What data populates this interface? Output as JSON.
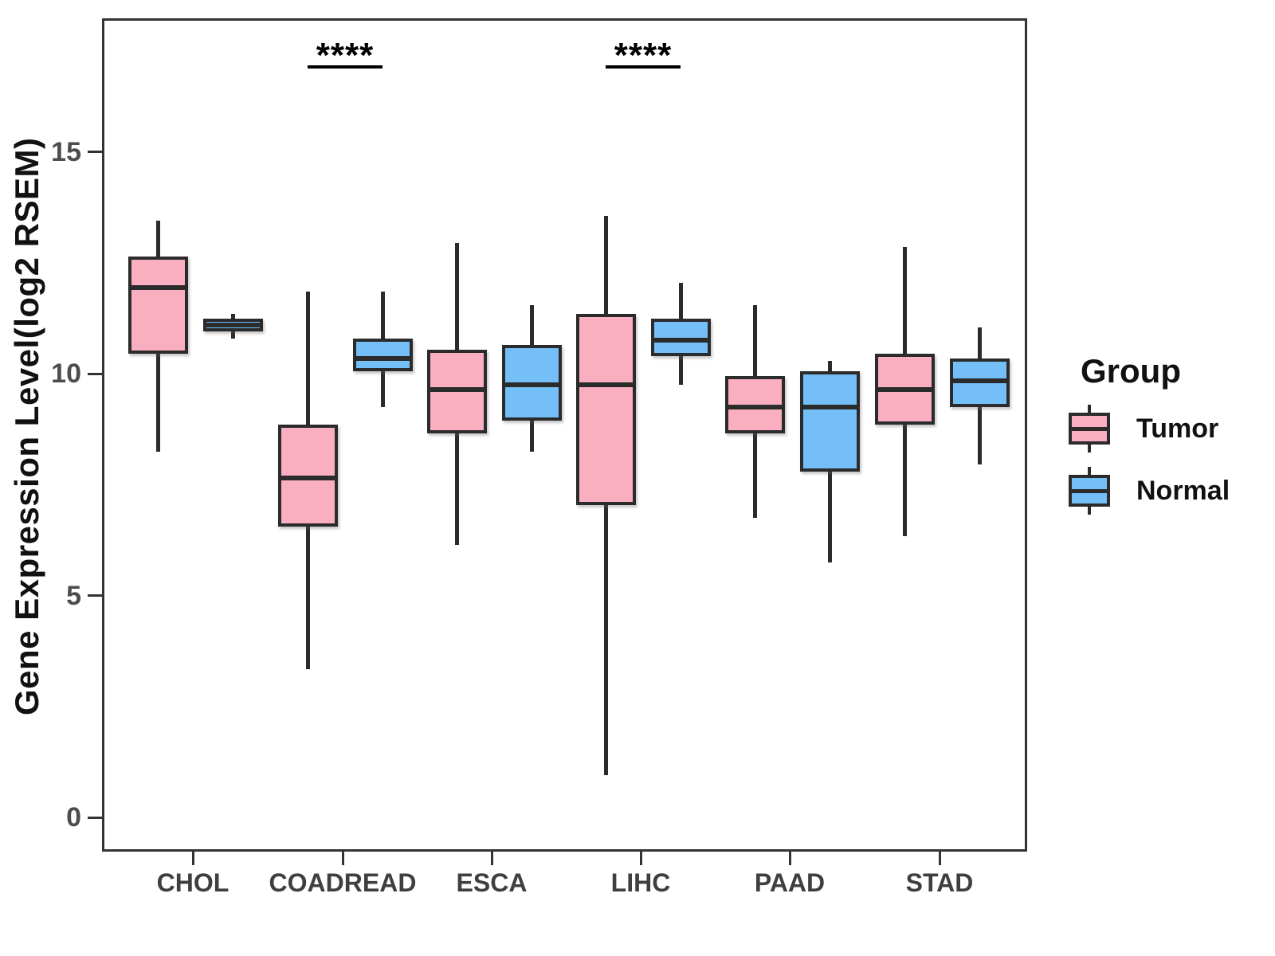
{
  "chart_data": {
    "type": "boxplot",
    "title": "",
    "xlabel": "",
    "ylabel": "Gene Expression Level(log2 RSEM)",
    "y_ticks": [
      0,
      5,
      10,
      15
    ],
    "ylim": [
      -0.75,
      18.05
    ],
    "grid": false,
    "categories": [
      "CHOL",
      "COADREAD",
      "ESCA",
      "LIHC",
      "PAAD",
      "STAD"
    ],
    "series": [
      {
        "name": "Tumor",
        "fill_color": "#FAAFC1",
        "line_color": "#2b2b2b",
        "boxes": [
          {
            "category": "CHOL",
            "min": 8.3,
            "q1": 10.5,
            "median": 12.0,
            "q3": 12.7,
            "max": 13.5
          },
          {
            "category": "COADREAD",
            "min": 3.4,
            "q1": 6.6,
            "median": 7.7,
            "q3": 8.9,
            "max": 11.9
          },
          {
            "category": "ESCA",
            "min": 6.2,
            "q1": 8.7,
            "median": 9.7,
            "q3": 10.6,
            "max": 13.0
          },
          {
            "category": "LIHC",
            "min": 1.0,
            "q1": 7.1,
            "median": 9.8,
            "q3": 11.4,
            "max": 13.6
          },
          {
            "category": "PAAD",
            "min": 6.8,
            "q1": 8.7,
            "median": 9.3,
            "q3": 10.0,
            "max": 11.6
          },
          {
            "category": "STAD",
            "min": 6.4,
            "q1": 8.9,
            "median": 9.7,
            "q3": 10.5,
            "max": 12.9
          }
        ]
      },
      {
        "name": "Normal",
        "fill_color": "#74BFF7",
        "line_color": "#2b2b2b",
        "boxes": [
          {
            "category": "CHOL",
            "min": 10.85,
            "q1": 11.0,
            "median": 11.15,
            "q3": 11.3,
            "max": 11.4
          },
          {
            "category": "COADREAD",
            "min": 9.3,
            "q1": 10.1,
            "median": 10.4,
            "q3": 10.85,
            "max": 11.9
          },
          {
            "category": "ESCA",
            "min": 8.3,
            "q1": 9.0,
            "median": 9.8,
            "q3": 10.7,
            "max": 11.6
          },
          {
            "category": "LIHC",
            "min": 9.8,
            "q1": 10.45,
            "median": 10.8,
            "q3": 11.3,
            "max": 12.1
          },
          {
            "category": "PAAD",
            "min": 5.8,
            "q1": 7.85,
            "median": 9.3,
            "q3": 10.1,
            "max": 10.35
          },
          {
            "category": "STAD",
            "min": 8.0,
            "q1": 9.3,
            "median": 9.9,
            "q3": 10.4,
            "max": 11.1
          }
        ]
      }
    ],
    "annotations": [
      {
        "category": "COADREAD",
        "label": "****",
        "y": 17.0
      },
      {
        "category": "LIHC",
        "label": "****",
        "y": 17.0
      }
    ],
    "legend": {
      "title": "Group",
      "position": "right",
      "entries": [
        {
          "label": "Tumor",
          "fill_color": "#FAAFC1"
        },
        {
          "label": "Normal",
          "fill_color": "#74BFF7"
        }
      ]
    }
  }
}
